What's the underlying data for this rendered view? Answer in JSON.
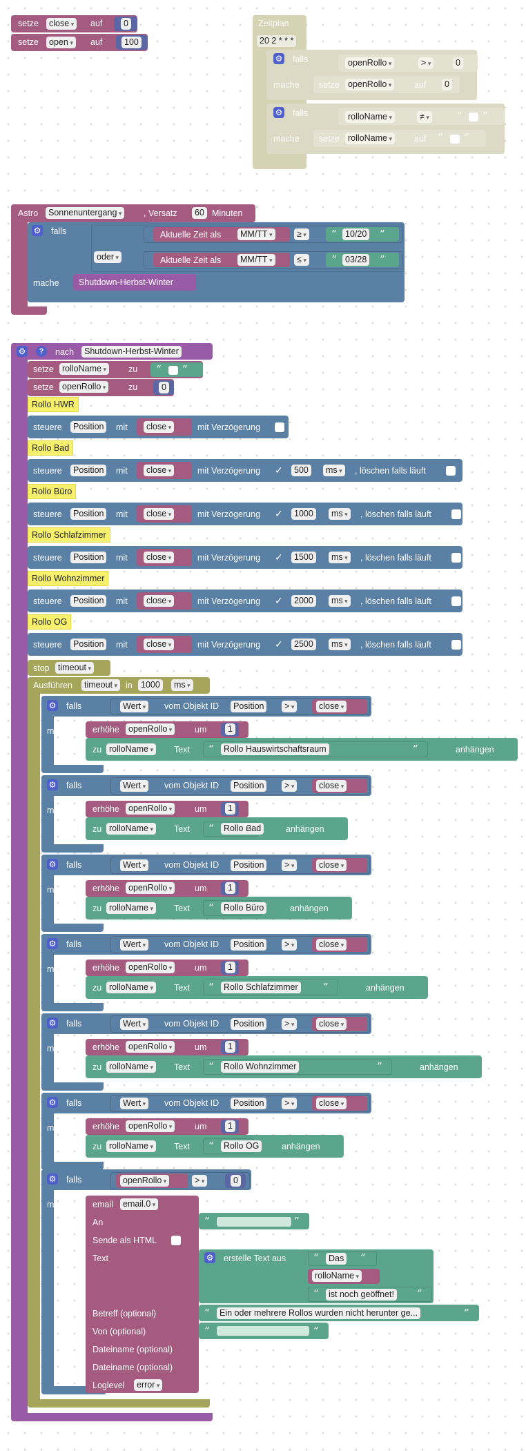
{
  "colors": {
    "variable": "#a55b80",
    "math": "#5b67a5",
    "logic": "#5b80a5",
    "text": "#5ba58c",
    "timer": "#a5a55b",
    "schedule": "#d6d3b4",
    "astro": "#a55b80",
    "procedure": "#995ba5",
    "comment": "#f7f06c",
    "email": "#a55b80"
  },
  "top_vars": {
    "set_label": "setze",
    "to_label": "auf",
    "rows": [
      {
        "var": "close",
        "value": "0"
      },
      {
        "var": "open",
        "value": "100"
      }
    ]
  },
  "schedule": {
    "title": "Zeitplan",
    "cron": "20 2 * * *",
    "if_label": "falls",
    "do_label": "mache",
    "set_label": "setze",
    "to_label": "auf",
    "rows": [
      {
        "var": "openRollo",
        "op": ">",
        "cmp": "0",
        "set_var": "openRollo",
        "set_value": "0"
      },
      {
        "var": "rolloName",
        "op": "≠",
        "cmp": "",
        "set_var": "rolloName",
        "set_value": ""
      }
    ]
  },
  "astro": {
    "label": "Astro",
    "event": "Sonnenuntergang",
    "offset_label": ", Versatz",
    "offset": "60",
    "unit": "Minuten",
    "if_label": "falls",
    "or_label": "oder",
    "do_label": "mache",
    "cond_label": "Aktuelle Zeit als",
    "format": "MM/TT",
    "cond1_op": "≥",
    "cond1_value": "10/20",
    "cond2_op": "≤",
    "cond2_value": "03/28",
    "call": "Shutdown-Herbst-Winter"
  },
  "proc": {
    "after_label": "nach",
    "name": "Shutdown-Herbst-Winter",
    "set_label": "setze",
    "to_label": "zu",
    "set1_var": "rolloName",
    "set1_value": "",
    "set2_var": "openRollo",
    "set2_value": "0",
    "control_label": "steuere",
    "with_label": "mit",
    "delay_label": "mit Verzögerung",
    "clear_label": ", löschen falls läuft",
    "state": "Position",
    "close": "close",
    "unit": "ms",
    "check": "✓",
    "rooms": [
      {
        "name": "Rollo HWR",
        "delay": ""
      },
      {
        "name": "Rollo Bad",
        "delay": "500"
      },
      {
        "name": "Rollo Büro",
        "delay": "1000"
      },
      {
        "name": "Rollo Schlafzimmer",
        "delay": "1500"
      },
      {
        "name": "Rollo Wohnzimmer",
        "delay": "2000"
      },
      {
        "name": "Rollo OG",
        "delay": "2500"
      }
    ],
    "stop_label": "stop",
    "timeout": "timeout",
    "exec_label": "Ausführen",
    "in_label": "in",
    "exec_ms": "1000",
    "if_label": "falls",
    "do_label": "mache",
    "value_label": "Wert",
    "from_label": "vom Objekt ID",
    "op": ">",
    "inc_label": "erhöhe",
    "inc_var": "openRollo",
    "by_label": "um",
    "inc_by": "1",
    "text_label": "Text",
    "append_label": "anhängen",
    "name_var": "rolloName",
    "checks": [
      "Rollo Hauswirtschaftsraum",
      "Rollo Bad",
      "Rollo Büro",
      "Rollo Schlafzimmer",
      "Rollo Wohnzimmer",
      "Rollo OG"
    ],
    "final_var": "openRollo",
    "final_op": ">",
    "final_value": "0",
    "email": {
      "label": "email",
      "instance": "email.0",
      "to_label": "An",
      "html_label": "Sende als HTML",
      "text_label": "Text",
      "create_text": "erstelle Text aus",
      "t1": "Das",
      "t2": "rolloName",
      "t3": "ist noch geöffnet!",
      "subject_label": "Betreff (optional)",
      "subject": "Ein oder mehrere Rollos wurden nicht herunter ge...",
      "from_label": "Von (optional)",
      "file1": "Dateiname (optional)",
      "file2": "Dateiname (optional)",
      "loglevel_label": "Loglevel",
      "loglevel": "error"
    }
  }
}
